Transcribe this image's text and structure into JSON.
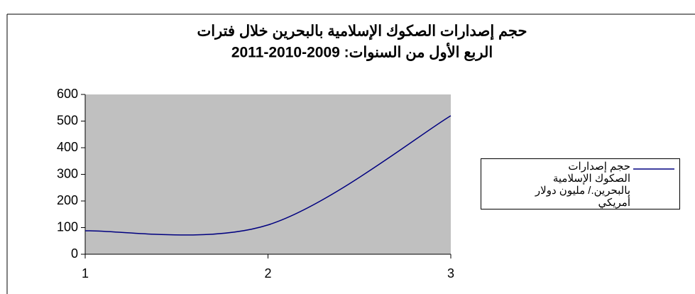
{
  "chart_data": {
    "type": "line",
    "title": [
      "حجم إصدارات الصكوك الإسلامية بالبحرين خلال فترات",
      "الربع الأول من السنوات: 2009-2010-2011"
    ],
    "x": [
      1,
      2,
      3
    ],
    "series": [
      {
        "name": "حجم إصدارات الصكوك الإسلامية بالبحرين./ مليون دولار أمريكي",
        "color": "#000080",
        "values": [
          88,
          110,
          520
        ]
      }
    ],
    "xlim": [
      1,
      3
    ],
    "xticks": [
      1,
      2,
      3
    ],
    "ylim": [
      0,
      600
    ],
    "yticks": [
      0,
      100,
      200,
      300,
      400,
      500,
      600
    ],
    "plot_background": "#c0c0c0",
    "legend": "right",
    "smooth": true
  }
}
